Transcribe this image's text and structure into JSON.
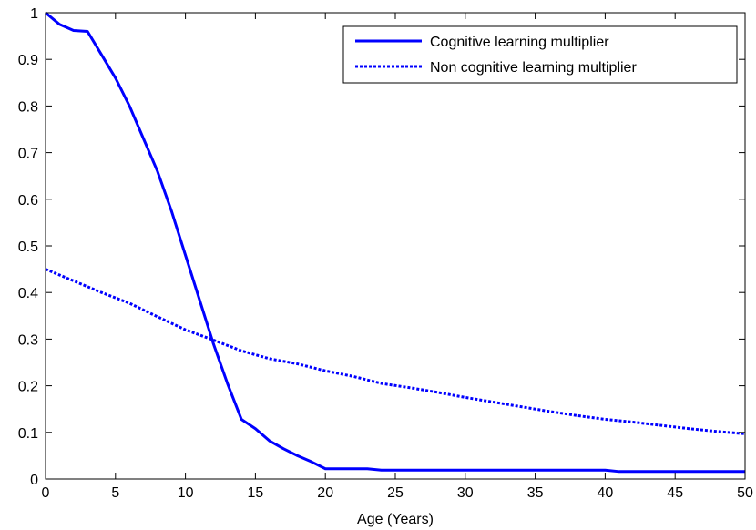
{
  "chart_data": {
    "type": "line",
    "title": "",
    "xlabel": "Age (Years)",
    "ylabel": "",
    "xlim": [
      0,
      50
    ],
    "ylim": [
      0,
      1
    ],
    "xticks": [
      "0",
      "5",
      "10",
      "15",
      "20",
      "25",
      "30",
      "35",
      "40",
      "45",
      "50"
    ],
    "yticks": [
      "0",
      "0.1",
      "0.2",
      "0.3",
      "0.4",
      "0.5",
      "0.6",
      "0.7",
      "0.8",
      "0.9",
      "1"
    ],
    "grid": false,
    "legend_position": "top-right",
    "series": [
      {
        "name": "Cognitive learning multiplier",
        "style": "solid",
        "color": "#0000ff",
        "x": [
          0,
          1,
          2,
          3,
          4,
          5,
          6,
          7,
          8,
          9,
          10,
          11,
          12,
          13,
          14,
          15,
          16,
          17,
          18,
          19,
          20,
          21,
          22,
          23,
          24,
          25,
          30,
          35,
          40,
          41,
          45,
          50
        ],
        "y": [
          1.0,
          0.975,
          0.962,
          0.96,
          0.91,
          0.86,
          0.8,
          0.73,
          0.66,
          0.575,
          0.48,
          0.385,
          0.29,
          0.205,
          0.128,
          0.108,
          0.082,
          0.065,
          0.05,
          0.037,
          0.022,
          0.022,
          0.022,
          0.022,
          0.019,
          0.019,
          0.019,
          0.019,
          0.019,
          0.016,
          0.016,
          0.016
        ]
      },
      {
        "name": "Non cognitive learning multiplier",
        "style": "dotted",
        "color": "#0000ff",
        "x": [
          0,
          2,
          4,
          6,
          8,
          10,
          12,
          14,
          16,
          18,
          20,
          22,
          24,
          26,
          28,
          30,
          32,
          34,
          36,
          38,
          40,
          42,
          44,
          46,
          48,
          50
        ],
        "y": [
          0.45,
          0.425,
          0.4,
          0.377,
          0.348,
          0.32,
          0.298,
          0.275,
          0.258,
          0.247,
          0.232,
          0.22,
          0.205,
          0.196,
          0.186,
          0.175,
          0.165,
          0.155,
          0.145,
          0.136,
          0.128,
          0.122,
          0.115,
          0.108,
          0.102,
          0.097
        ]
      }
    ]
  }
}
